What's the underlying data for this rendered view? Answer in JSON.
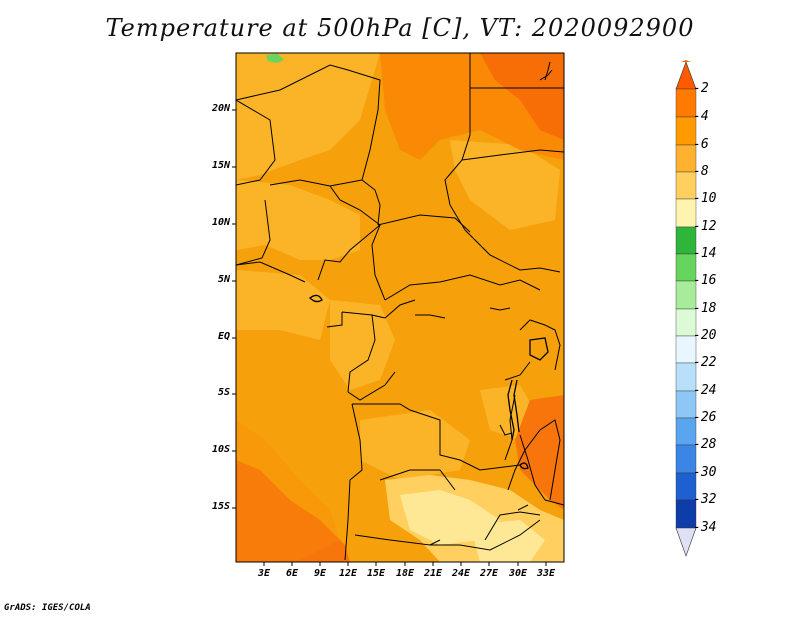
{
  "title": "Temperature at 500hPa [C], VT: 2020092900",
  "credit": "GrADS: IGES/COLA",
  "map": {
    "lat_labels": [
      "20N",
      "15N",
      "10N",
      "5N",
      "EQ",
      "5S",
      "10S",
      "15S"
    ],
    "lon_labels": [
      "3E",
      "6E",
      "9E",
      "12E",
      "15E",
      "18E",
      "21E",
      "24E",
      "27E",
      "30E",
      "33E"
    ],
    "field": "Temperature at 500hPa",
    "units": "C"
  },
  "colorbar": {
    "labels": [
      "-2",
      "-4",
      "-6",
      "-8",
      "-10",
      "-12",
      "-14",
      "-16",
      "-18",
      "-20",
      "-22",
      "-24",
      "-26",
      "-28",
      "-30",
      "-32",
      "-34"
    ],
    "colors": [
      "#ff6a00",
      "#ff9500",
      "#ffb22f",
      "#ffd060",
      "#ffe895",
      "#fff8c5",
      "#2fb53a",
      "#65d55e",
      "#9fec95",
      "#d2f8cb",
      "#e7f8ff",
      "#b8e0fb",
      "#92c9f6",
      "#5ba8ee",
      "#3a85e5",
      "#1f5fd4",
      "#0e3ca8",
      "#0a1c7a",
      "#e8e8f5"
    ]
  }
}
